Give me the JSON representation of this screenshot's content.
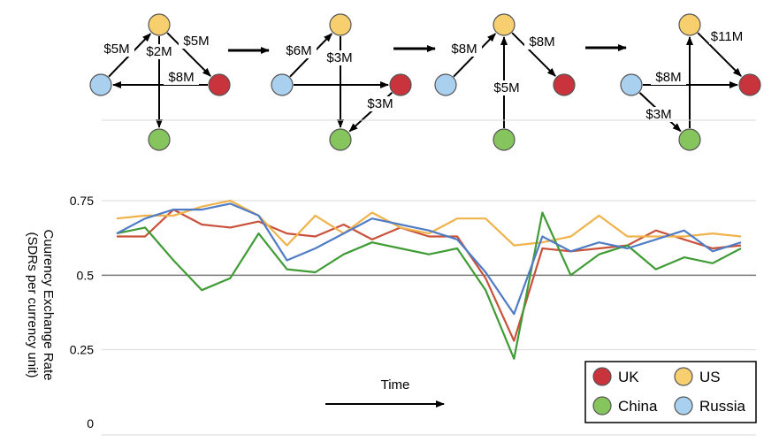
{
  "colors": {
    "UK": "#c9333b",
    "US": "#f7cf6f",
    "China": "#86c45e",
    "Russia": "#a9d0ef",
    "UK_line": "#c9513a",
    "US_line": "#f0b24a",
    "China_line": "#3f9c35",
    "Russia_line": "#4f7cc5"
  },
  "flow_diagram": {
    "panels": [
      {
        "edges": [
          {
            "from": "Russia",
            "to": "US",
            "label": "$5M"
          },
          {
            "from": "US",
            "to": "China",
            "label": "$2M"
          },
          {
            "from": "US",
            "to": "UK",
            "label": "$5M"
          },
          {
            "from": "UK",
            "to": "Russia",
            "label": "$8M"
          }
        ]
      },
      {
        "edges": [
          {
            "from": "Russia",
            "to": "US",
            "label": "$6M"
          },
          {
            "from": "US",
            "to": "China",
            "label": "$3M"
          },
          {
            "from": "Russia",
            "to": "UK",
            "label": ""
          },
          {
            "from": "UK",
            "to": "China",
            "label": "$3M"
          }
        ]
      },
      {
        "edges": [
          {
            "from": "Russia",
            "to": "US",
            "label": "$8M"
          },
          {
            "from": "US",
            "to": "UK",
            "label": "$8M"
          },
          {
            "from": "China",
            "to": "US",
            "label": "$5M"
          }
        ]
      },
      {
        "edges": [
          {
            "from": "China",
            "to": "US",
            "label": ""
          },
          {
            "from": "US",
            "to": "UK",
            "label": "$11M"
          },
          {
            "from": "Russia",
            "to": "UK",
            "label": "$8M"
          },
          {
            "from": "Russia",
            "to": "China",
            "label": "$3M"
          }
        ]
      }
    ]
  },
  "chart_data": {
    "type": "line",
    "title": "",
    "xlabel": "Time",
    "ylabel": "Currency Exchange Rate (SDRs per currency unit)",
    "ylabel_lines": [
      "Cuurency Exchange Rate",
      "(SDRs per currency unit)"
    ],
    "ylim": [
      0,
      0.8
    ],
    "yticks": [
      {
        "value": 0,
        "label": "0"
      },
      {
        "value": 0.25,
        "label": "0.25"
      },
      {
        "value": 0.5,
        "label": "0.5"
      },
      {
        "value": 0.75,
        "label": "0.75"
      }
    ],
    "reference_line": 0.5,
    "x": [
      0,
      1,
      2,
      3,
      4,
      5,
      6,
      7,
      8,
      9,
      10,
      11,
      12,
      13,
      14,
      15,
      16,
      17,
      18,
      19,
      20,
      21,
      22
    ],
    "xlim": [
      0,
      22
    ],
    "legend": {
      "position": "bottom-right",
      "entries": [
        {
          "key": "UK",
          "label": "UK"
        },
        {
          "key": "US",
          "label": "US"
        },
        {
          "key": "China",
          "label": "China"
        },
        {
          "key": "Russia",
          "label": "Russia"
        }
      ]
    },
    "series": [
      {
        "key": "UK",
        "name": "UK",
        "values": [
          0.63,
          0.63,
          0.72,
          0.67,
          0.66,
          0.68,
          0.64,
          0.63,
          0.67,
          0.62,
          0.66,
          0.63,
          0.63,
          0.49,
          0.28,
          0.59,
          0.58,
          0.59,
          0.6,
          0.65,
          0.62,
          0.59,
          0.6
        ]
      },
      {
        "key": "US",
        "name": "US",
        "values": [
          0.69,
          0.7,
          0.7,
          0.73,
          0.75,
          0.7,
          0.6,
          0.7,
          0.64,
          0.71,
          0.66,
          0.64,
          0.69,
          0.69,
          0.6,
          0.61,
          0.63,
          0.7,
          0.63,
          0.63,
          0.63,
          0.64,
          0.63
        ]
      },
      {
        "key": "China",
        "name": "China",
        "values": [
          0.64,
          0.66,
          0.55,
          0.45,
          0.49,
          0.64,
          0.52,
          0.51,
          0.57,
          0.61,
          0.59,
          0.57,
          0.59,
          0.45,
          0.22,
          0.71,
          0.5,
          0.57,
          0.6,
          0.52,
          0.56,
          0.54,
          0.59
        ]
      },
      {
        "key": "Russia",
        "name": "Russia",
        "values": [
          0.64,
          0.69,
          0.72,
          0.72,
          0.74,
          0.7,
          0.55,
          0.59,
          0.64,
          0.69,
          0.67,
          0.65,
          0.62,
          0.51,
          0.37,
          0.63,
          0.58,
          0.61,
          0.59,
          0.62,
          0.65,
          0.58,
          0.61
        ]
      }
    ]
  }
}
